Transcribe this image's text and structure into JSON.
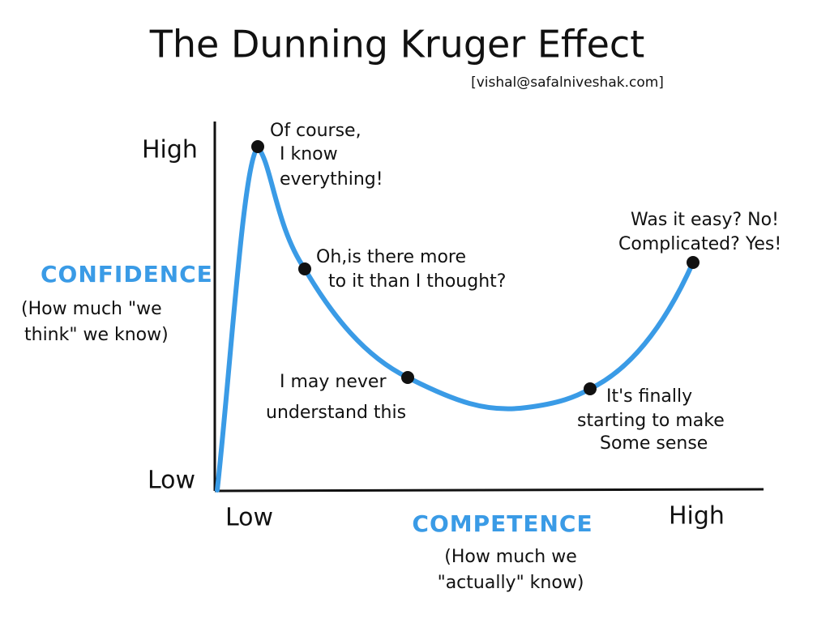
{
  "title": "The Dunning Kruger Effect",
  "subtitle": "[vishal@safalniveshak.com]",
  "y_axis": {
    "label": "CONFIDENCE",
    "sublabel": [
      "(How much \"we",
      "think\" we know)"
    ],
    "high": "High",
    "low": "Low"
  },
  "x_axis": {
    "label": "COMPETENCE",
    "sublabel": [
      "(How much we",
      "\"actually\" know)"
    ],
    "low": "Low",
    "high": "High"
  },
  "annotations": [
    {
      "lines": [
        "Of course,",
        "I know",
        "everything!"
      ]
    },
    {
      "lines": [
        "Oh,is there more",
        "to it than I thought?"
      ]
    },
    {
      "lines": [
        "I may never",
        "understand this"
      ]
    },
    {
      "lines": [
        "It's finally",
        "starting to make",
        "Some sense"
      ]
    },
    {
      "lines": [
        "Was it easy? No!",
        "Complicated? Yes!"
      ]
    }
  ]
}
